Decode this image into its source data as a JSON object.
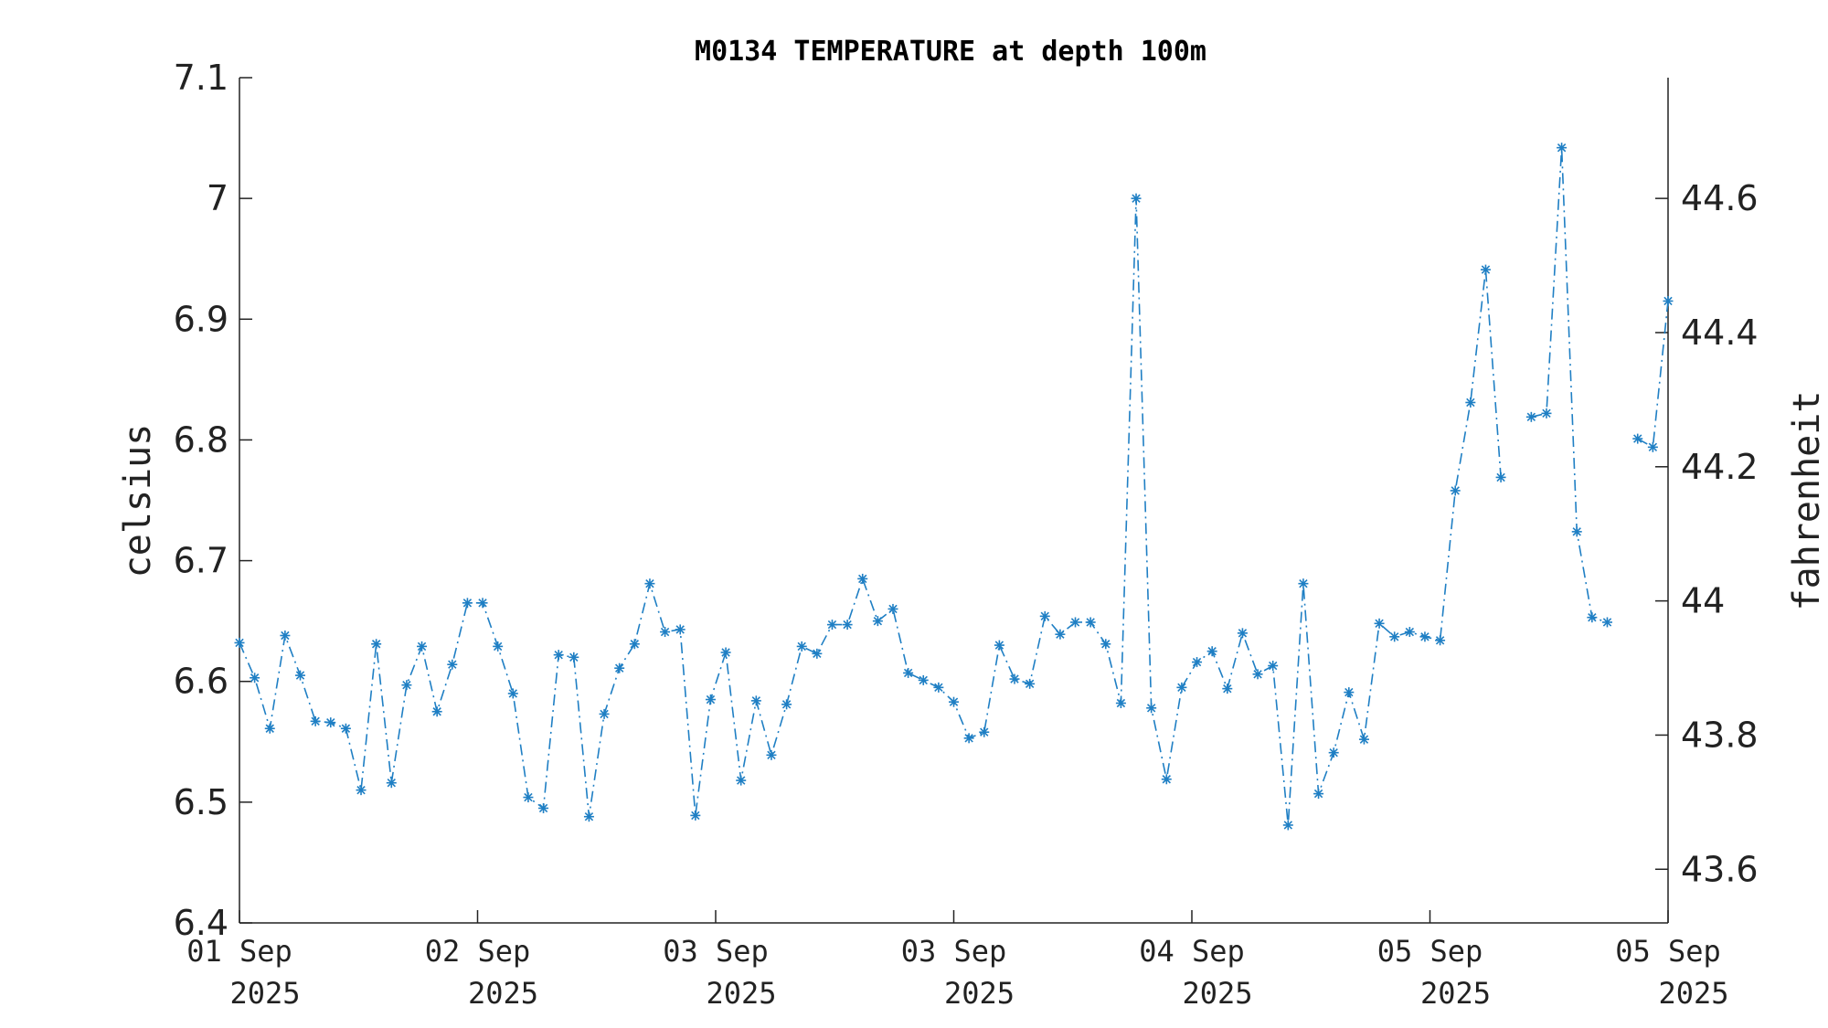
{
  "chart_data": {
    "type": "line",
    "title": "M0134 TEMPERATURE at depth 100m",
    "ylabel": "celsius",
    "y2label": "fahrenheit",
    "ylim": [
      6.4,
      7.1
    ],
    "y2lim": [
      43.52,
      44.78
    ],
    "yticks": [
      "6.4",
      "6.5",
      "6.6",
      "6.7",
      "6.8",
      "6.9",
      "7",
      "7.1"
    ],
    "y2ticks": [
      "43.6",
      "43.8",
      "44",
      "44.2",
      "44.4",
      "44.6"
    ],
    "xlim": [
      0,
      94
    ],
    "xticks": [
      {
        "day": "01 Sep",
        "year": "2025"
      },
      {
        "day": "02 Sep",
        "year": "2025"
      },
      {
        "day": "03 Sep",
        "year": "2025"
      },
      {
        "day": "03 Sep",
        "year": "2025"
      },
      {
        "day": "04 Sep",
        "year": "2025"
      },
      {
        "day": "05 Sep",
        "year": "2025"
      },
      {
        "day": "05 Sep",
        "year": "2025"
      }
    ],
    "marker": "asterisk",
    "line_style": "dash-dot",
    "color": "#1f7fc4",
    "series": [
      {
        "values": [
          6.632,
          6.603,
          6.561,
          6.638,
          6.605,
          6.567,
          6.566,
          6.561,
          6.51,
          6.631,
          6.516,
          6.597,
          6.629,
          6.575,
          6.614,
          6.665,
          6.665,
          6.629,
          6.59,
          6.504,
          6.495,
          6.622,
          6.62,
          6.488,
          6.573,
          6.611,
          6.631,
          6.681,
          6.641,
          6.643,
          6.489,
          6.585,
          6.624,
          6.518,
          6.584,
          6.539,
          6.581,
          6.629,
          6.623,
          6.647,
          6.647,
          6.685,
          6.65,
          6.66,
          6.607,
          6.601,
          6.595,
          6.583,
          6.553,
          6.558,
          6.63,
          6.602,
          6.598,
          6.654,
          6.639,
          6.649,
          6.649,
          6.631,
          6.582,
          7.0,
          6.578,
          6.519,
          6.595,
          6.616,
          6.625,
          6.594,
          6.64,
          6.606,
          6.613,
          6.481,
          6.681,
          6.507,
          6.541,
          6.591,
          6.552,
          6.648,
          6.637,
          6.641,
          6.637,
          6.634,
          6.758,
          6.831,
          6.941,
          6.769,
          null,
          6.819,
          6.822,
          7.042,
          6.724,
          6.653,
          6.649,
          null,
          6.801,
          6.794,
          6.915
        ]
      }
    ]
  }
}
